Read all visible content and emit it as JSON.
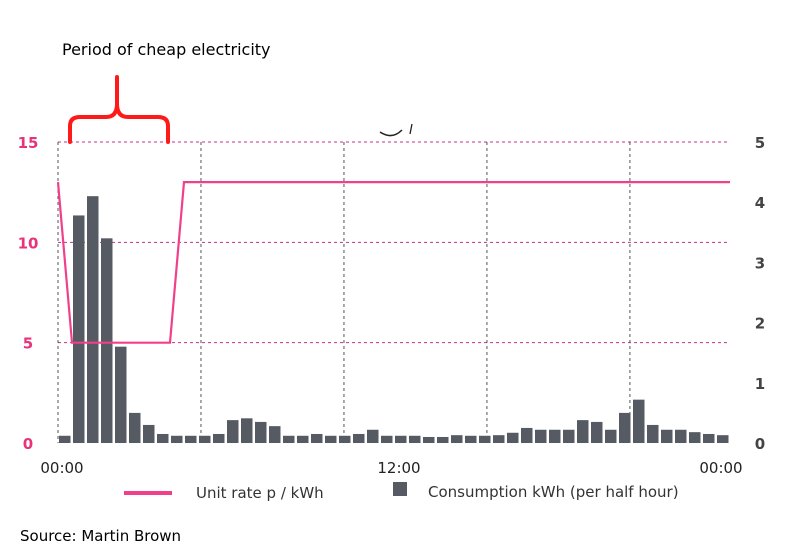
{
  "annotation": "Period of cheap electricity",
  "source": "Source: Martin Brown",
  "colors": {
    "rate_line": "#f0408a",
    "bars": "#555a63",
    "brace": "#ff1a1a",
    "grid_h": "#c0308a",
    "grid_v": "#555555",
    "left_ticks": "#e8337a",
    "right_ticks": "#444444"
  },
  "chart_data": {
    "type": "bar+line",
    "x_ticks": [
      "00:00",
      "12:00",
      "00:00"
    ],
    "left_axis": {
      "ticks": [
        "0",
        "5",
        "10",
        "15"
      ],
      "range": [
        0,
        15
      ]
    },
    "right_axis": {
      "ticks": [
        "0",
        "1",
        "2",
        "3",
        "4",
        "5"
      ],
      "range": [
        0,
        5
      ]
    },
    "grid": true,
    "legend": {
      "placement": "bottom",
      "items": [
        "Unit rate p / kWh",
        "Consumption kWh (per half hour)"
      ]
    },
    "series": [
      {
        "name": "Consumption kWh (per half hour)",
        "type": "bar",
        "axis": "right",
        "values": [
          0.12,
          3.78,
          4.1,
          3.4,
          1.6,
          0.5,
          0.3,
          0.15,
          0.12,
          0.12,
          0.12,
          0.15,
          0.38,
          0.41,
          0.35,
          0.28,
          0.12,
          0.12,
          0.15,
          0.12,
          0.12,
          0.15,
          0.22,
          0.12,
          0.12,
          0.12,
          0.1,
          0.1,
          0.13,
          0.12,
          0.12,
          0.13,
          0.17,
          0.25,
          0.22,
          0.22,
          0.22,
          0.38,
          0.35,
          0.22,
          0.5,
          0.72,
          0.3,
          0.22,
          0.22,
          0.18,
          0.15,
          0.13
        ]
      },
      {
        "name": "Unit rate p / kWh",
        "type": "line",
        "axis": "left",
        "points": [
          [
            0,
            13
          ],
          [
            1,
            5
          ],
          [
            8,
            5
          ],
          [
            9,
            13
          ],
          [
            48,
            13
          ]
        ]
      }
    ]
  }
}
